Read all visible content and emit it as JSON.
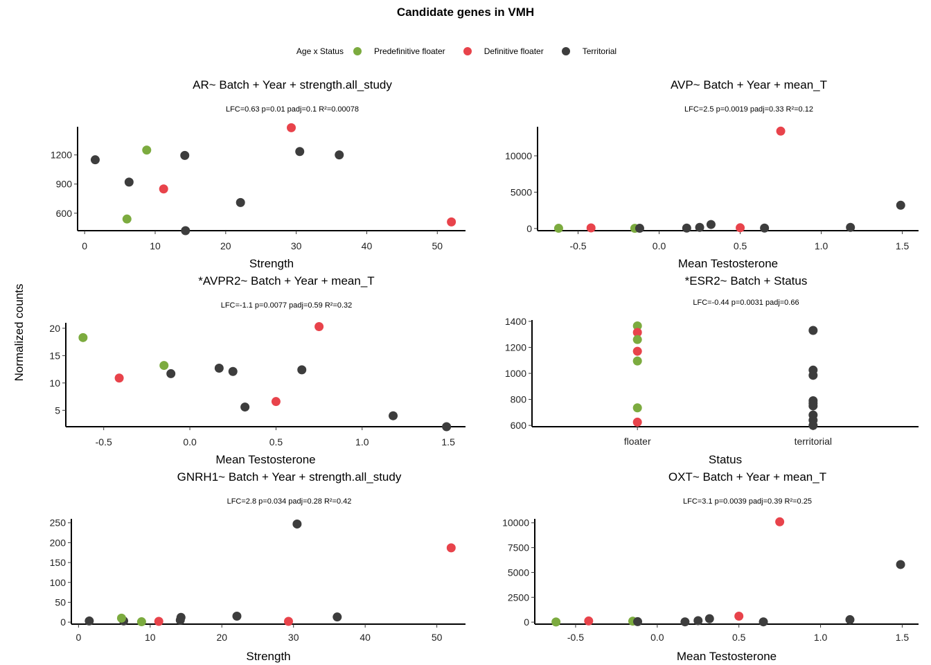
{
  "title": "Candidate genes in VMH",
  "y_label": "Normalized counts",
  "legend": {
    "title": "Age x Status",
    "items": [
      {
        "label": "Predefinitive floater",
        "color": "#7cab3f"
      },
      {
        "label": "Definitive floater",
        "color": "#e8434b"
      },
      {
        "label": "Territorial",
        "color": "#3d3d3d"
      }
    ]
  },
  "chart_data": [
    {
      "type": "scatter",
      "title": "AR~ Batch + Year + strength.all_study",
      "stats": "LFC=0.63 p=0.01 padj=0.1 R²=0.00078",
      "xlabel": "Strength",
      "xlim": [
        -1,
        54
      ],
      "ylim": [
        420,
        1490
      ],
      "xticks": [
        0,
        10,
        20,
        30,
        40,
        50
      ],
      "yticks": [
        600,
        900,
        1200
      ],
      "points": [
        {
          "x": 1.5,
          "y": 1150,
          "group": "Territorial"
        },
        {
          "x": 6.3,
          "y": 920,
          "group": "Territorial"
        },
        {
          "x": 6.0,
          "y": 540,
          "group": "Predefinitive floater"
        },
        {
          "x": 8.8,
          "y": 1250,
          "group": "Predefinitive floater"
        },
        {
          "x": 11.2,
          "y": 850,
          "group": "Definitive floater"
        },
        {
          "x": 14.2,
          "y": 1195,
          "group": "Territorial"
        },
        {
          "x": 14.3,
          "y": 420,
          "group": "Territorial"
        },
        {
          "x": 22.1,
          "y": 710,
          "group": "Territorial"
        },
        {
          "x": 29.3,
          "y": 1480,
          "group": "Definitive floater"
        },
        {
          "x": 30.5,
          "y": 1235,
          "group": "Territorial"
        },
        {
          "x": 36.1,
          "y": 1200,
          "group": "Territorial"
        },
        {
          "x": 52.0,
          "y": 510,
          "group": "Definitive floater"
        }
      ]
    },
    {
      "type": "scatter",
      "title": "AVP~ Batch + Year + mean_T",
      "stats": "LFC=2.5 p=0.0019 padj=0.33 R²=0.12",
      "xlabel": "Mean Testosterone",
      "xlim": [
        -0.75,
        1.6
      ],
      "ylim": [
        -300,
        14000
      ],
      "xticks": [
        -0.5,
        0.0,
        0.5,
        1.0,
        1.5
      ],
      "yticks": [
        0,
        5000,
        10000
      ],
      "points": [
        {
          "x": -0.62,
          "y": 30,
          "group": "Predefinitive floater"
        },
        {
          "x": -0.42,
          "y": 80,
          "group": "Definitive floater"
        },
        {
          "x": -0.15,
          "y": 20,
          "group": "Predefinitive floater"
        },
        {
          "x": -0.12,
          "y": 30,
          "group": "Territorial"
        },
        {
          "x": 0.17,
          "y": 60,
          "group": "Territorial"
        },
        {
          "x": 0.25,
          "y": 150,
          "group": "Territorial"
        },
        {
          "x": 0.32,
          "y": 550,
          "group": "Territorial"
        },
        {
          "x": 0.5,
          "y": 100,
          "group": "Definitive floater"
        },
        {
          "x": 0.65,
          "y": 60,
          "group": "Territorial"
        },
        {
          "x": 0.75,
          "y": 13400,
          "group": "Definitive floater"
        },
        {
          "x": 1.18,
          "y": 150,
          "group": "Territorial"
        },
        {
          "x": 1.49,
          "y": 3200,
          "group": "Territorial"
        }
      ]
    },
    {
      "type": "scatter",
      "title": "*AVPR2~ Batch + Year + mean_T",
      "stats": "LFC=-1.1 p=0.0077 padj=0.59 R²=0.32",
      "xlabel": "Mean Testosterone",
      "xlim": [
        -0.72,
        1.6
      ],
      "ylim": [
        2,
        21
      ],
      "xticks": [
        -0.5,
        0.0,
        0.5,
        1.0,
        1.5
      ],
      "yticks": [
        5,
        10,
        15,
        20
      ],
      "points": [
        {
          "x": -0.62,
          "y": 18.3,
          "group": "Predefinitive floater"
        },
        {
          "x": -0.41,
          "y": 10.9,
          "group": "Definitive floater"
        },
        {
          "x": -0.15,
          "y": 13.2,
          "group": "Predefinitive floater"
        },
        {
          "x": -0.11,
          "y": 11.7,
          "group": "Territorial"
        },
        {
          "x": 0.17,
          "y": 12.7,
          "group": "Territorial"
        },
        {
          "x": 0.25,
          "y": 12.1,
          "group": "Territorial"
        },
        {
          "x": 0.32,
          "y": 5.6,
          "group": "Territorial"
        },
        {
          "x": 0.5,
          "y": 6.6,
          "group": "Definitive floater"
        },
        {
          "x": 0.65,
          "y": 12.4,
          "group": "Territorial"
        },
        {
          "x": 0.75,
          "y": 20.3,
          "group": "Definitive floater"
        },
        {
          "x": 1.18,
          "y": 4.0,
          "group": "Territorial"
        },
        {
          "x": 1.49,
          "y": 2.0,
          "group": "Territorial"
        }
      ]
    },
    {
      "type": "scatter",
      "title": "*ESR2~ Batch + Status",
      "stats": "LFC=-0.44 p=0.0031 padj=0.66",
      "xlabel": "Status",
      "categorical_x": true,
      "categories": [
        "floater",
        "territorial"
      ],
      "xlim": [
        0.4,
        2.6
      ],
      "ylim": [
        590,
        1410
      ],
      "yticks": [
        600,
        800,
        1000,
        1200,
        1400
      ],
      "points": [
        {
          "x": 1,
          "y": 1365,
          "group": "Predefinitive floater"
        },
        {
          "x": 1,
          "y": 1315,
          "group": "Definitive floater"
        },
        {
          "x": 1,
          "y": 1260,
          "group": "Predefinitive floater"
        },
        {
          "x": 1,
          "y": 1170,
          "group": "Definitive floater"
        },
        {
          "x": 1,
          "y": 1095,
          "group": "Predefinitive floater"
        },
        {
          "x": 1,
          "y": 735,
          "group": "Predefinitive floater"
        },
        {
          "x": 1,
          "y": 625,
          "group": "Definitive floater"
        },
        {
          "x": 2,
          "y": 1330,
          "group": "Territorial"
        },
        {
          "x": 2,
          "y": 1025,
          "group": "Territorial"
        },
        {
          "x": 2,
          "y": 985,
          "group": "Territorial"
        },
        {
          "x": 2,
          "y": 790,
          "group": "Territorial"
        },
        {
          "x": 2,
          "y": 770,
          "group": "Territorial"
        },
        {
          "x": 2,
          "y": 750,
          "group": "Territorial"
        },
        {
          "x": 2,
          "y": 680,
          "group": "Territorial"
        },
        {
          "x": 2,
          "y": 640,
          "group": "Territorial"
        },
        {
          "x": 2,
          "y": 600,
          "group": "Territorial"
        }
      ]
    },
    {
      "type": "scatter",
      "title": "GNRH1~ Batch + Year + strength.all_study",
      "stats": "LFC=2.8 p=0.034 padj=0.28 R²=0.42",
      "xlabel": "Strength",
      "xlim": [
        -1,
        54
      ],
      "ylim": [
        -5,
        260
      ],
      "xticks": [
        0,
        10,
        20,
        30,
        40,
        50
      ],
      "yticks": [
        0,
        50,
        100,
        150,
        200,
        250
      ],
      "points": [
        {
          "x": 1.5,
          "y": 3,
          "group": "Territorial"
        },
        {
          "x": 6.3,
          "y": 3,
          "group": "Territorial"
        },
        {
          "x": 6.0,
          "y": 10,
          "group": "Predefinitive floater"
        },
        {
          "x": 8.8,
          "y": 1,
          "group": "Predefinitive floater"
        },
        {
          "x": 11.2,
          "y": 2,
          "group": "Definitive floater"
        },
        {
          "x": 14.2,
          "y": 5,
          "group": "Territorial"
        },
        {
          "x": 14.3,
          "y": 12,
          "group": "Territorial"
        },
        {
          "x": 22.1,
          "y": 15,
          "group": "Territorial"
        },
        {
          "x": 29.3,
          "y": 2,
          "group": "Definitive floater"
        },
        {
          "x": 30.5,
          "y": 247,
          "group": "Territorial"
        },
        {
          "x": 36.1,
          "y": 13,
          "group": "Territorial"
        },
        {
          "x": 52.0,
          "y": 187,
          "group": "Definitive floater"
        }
      ]
    },
    {
      "type": "scatter",
      "title": "OXT~ Batch + Year + mean_T",
      "stats": "LFC=3.1 p=0.0039 padj=0.39 R²=0.25",
      "xlabel": "Mean Testosterone",
      "xlim": [
        -0.75,
        1.6
      ],
      "ylim": [
        -200,
        10400
      ],
      "xticks": [
        -0.5,
        0.0,
        0.5,
        1.0,
        1.5
      ],
      "yticks": [
        0,
        2500,
        5000,
        7500,
        10000
      ],
      "points": [
        {
          "x": -0.62,
          "y": 20,
          "group": "Predefinitive floater"
        },
        {
          "x": -0.42,
          "y": 120,
          "group": "Definitive floater"
        },
        {
          "x": -0.15,
          "y": 100,
          "group": "Predefinitive floater"
        },
        {
          "x": -0.12,
          "y": 50,
          "group": "Territorial"
        },
        {
          "x": 0.17,
          "y": 30,
          "group": "Territorial"
        },
        {
          "x": 0.25,
          "y": 150,
          "group": "Territorial"
        },
        {
          "x": 0.32,
          "y": 350,
          "group": "Territorial"
        },
        {
          "x": 0.5,
          "y": 600,
          "group": "Definitive floater"
        },
        {
          "x": 0.65,
          "y": 30,
          "group": "Territorial"
        },
        {
          "x": 0.75,
          "y": 10100,
          "group": "Definitive floater"
        },
        {
          "x": 1.18,
          "y": 250,
          "group": "Territorial"
        },
        {
          "x": 1.49,
          "y": 5800,
          "group": "Territorial"
        }
      ]
    }
  ]
}
